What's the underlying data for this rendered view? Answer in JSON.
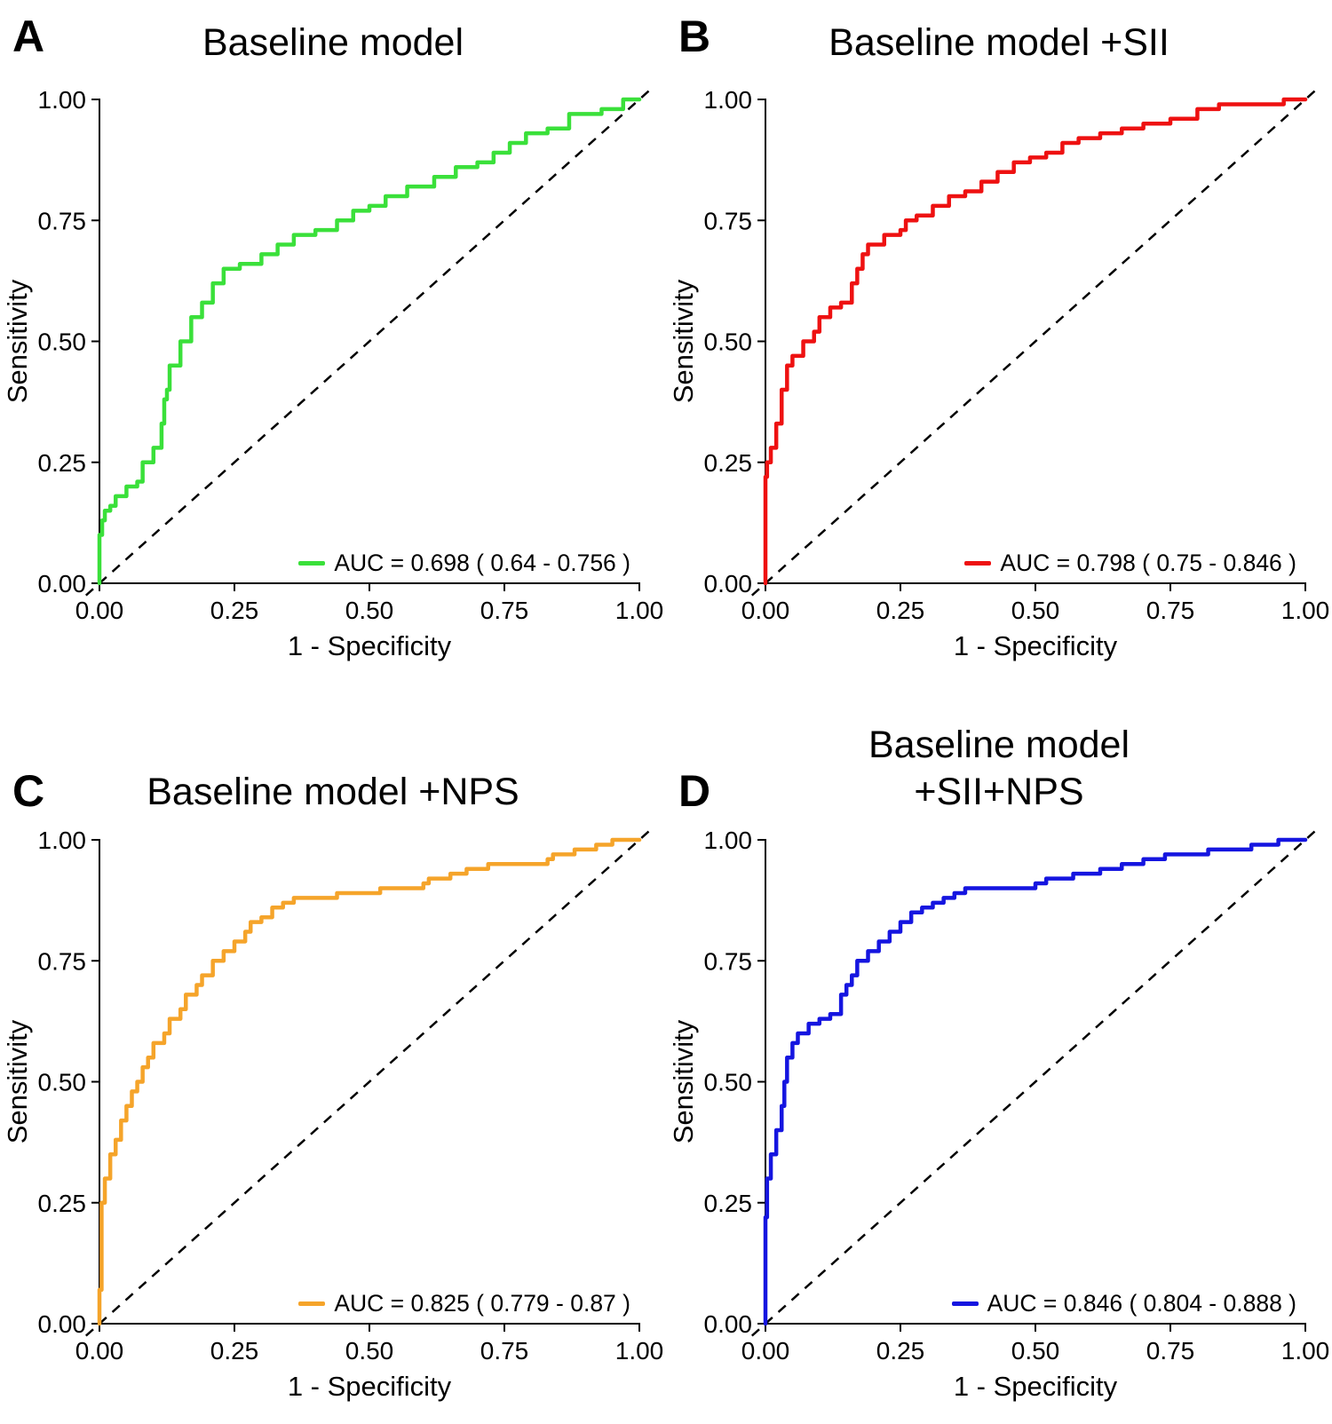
{
  "figure": {
    "x_label": "1 - Specificity",
    "y_label": "Sensitivity",
    "tick_labels": [
      "0.00",
      "0.25",
      "0.50",
      "0.75",
      "1.00"
    ],
    "tick_values": [
      0,
      0.25,
      0.5,
      0.75,
      1
    ]
  },
  "chart_data": [
    {
      "type": "line",
      "panel_letter": "A",
      "title": "Baseline model",
      "series_name": "ROC curve",
      "color": "#3ae03a",
      "legend_label": "AUC = 0.698 ( 0.64 - 0.756 )",
      "auc": 0.698,
      "auc_ci_low": 0.64,
      "auc_ci_high": 0.756,
      "xlabel": "1 - Specificity",
      "ylabel": "Sensitivity",
      "xlim": [
        0,
        1
      ],
      "ylim": [
        0,
        1
      ],
      "diagonal_reference": true,
      "x": [
        0,
        0.005,
        0.01,
        0.02,
        0.03,
        0.05,
        0.07,
        0.08,
        0.1,
        0.115,
        0.12,
        0.125,
        0.13,
        0.15,
        0.17,
        0.19,
        0.21,
        0.23,
        0.26,
        0.3,
        0.33,
        0.36,
        0.4,
        0.44,
        0.47,
        0.5,
        0.53,
        0.57,
        0.62,
        0.66,
        0.7,
        0.73,
        0.76,
        0.79,
        0.83,
        0.87,
        0.93,
        0.97,
        1.0
      ],
      "y": [
        0,
        0.1,
        0.13,
        0.15,
        0.16,
        0.18,
        0.2,
        0.21,
        0.25,
        0.28,
        0.33,
        0.38,
        0.4,
        0.45,
        0.5,
        0.55,
        0.58,
        0.62,
        0.65,
        0.66,
        0.68,
        0.7,
        0.72,
        0.73,
        0.75,
        0.77,
        0.78,
        0.8,
        0.82,
        0.84,
        0.86,
        0.87,
        0.89,
        0.91,
        0.93,
        0.94,
        0.97,
        0.98,
        1.0
      ]
    },
    {
      "type": "line",
      "panel_letter": "B",
      "title": "Baseline model +SII",
      "series_name": "ROC curve",
      "color": "#ee1111",
      "legend_label": "AUC = 0.798 ( 0.75 - 0.846 )",
      "auc": 0.798,
      "auc_ci_low": 0.75,
      "auc_ci_high": 0.846,
      "xlabel": "1 - Specificity",
      "ylabel": "Sensitivity",
      "xlim": [
        0,
        1
      ],
      "ylim": [
        0,
        1
      ],
      "diagonal_reference": true,
      "x": [
        0,
        0.003,
        0.01,
        0.02,
        0.03,
        0.04,
        0.05,
        0.07,
        0.09,
        0.1,
        0.12,
        0.14,
        0.16,
        0.17,
        0.18,
        0.19,
        0.22,
        0.25,
        0.26,
        0.28,
        0.31,
        0.34,
        0.37,
        0.4,
        0.43,
        0.46,
        0.49,
        0.52,
        0.55,
        0.58,
        0.62,
        0.66,
        0.7,
        0.75,
        0.8,
        0.84,
        0.9,
        0.96,
        1.0
      ],
      "y": [
        0,
        0.22,
        0.25,
        0.28,
        0.33,
        0.4,
        0.45,
        0.47,
        0.5,
        0.52,
        0.55,
        0.57,
        0.58,
        0.62,
        0.65,
        0.68,
        0.7,
        0.72,
        0.73,
        0.75,
        0.76,
        0.78,
        0.8,
        0.81,
        0.83,
        0.85,
        0.87,
        0.88,
        0.89,
        0.91,
        0.92,
        0.93,
        0.94,
        0.95,
        0.96,
        0.98,
        0.99,
        0.99,
        1.0
      ]
    },
    {
      "type": "line",
      "panel_letter": "C",
      "title": "Baseline model +NPS",
      "series_name": "ROC curve",
      "color": "#f5a42a",
      "legend_label": "AUC = 0.825 ( 0.779 - 0.87 )",
      "auc": 0.825,
      "auc_ci_low": 0.779,
      "auc_ci_high": 0.87,
      "xlabel": "1 - Specificity",
      "ylabel": "Sensitivity",
      "xlim": [
        0,
        1
      ],
      "ylim": [
        0,
        1
      ],
      "diagonal_reference": true,
      "x": [
        0,
        0.004,
        0.01,
        0.02,
        0.03,
        0.04,
        0.05,
        0.06,
        0.07,
        0.08,
        0.09,
        0.1,
        0.12,
        0.13,
        0.15,
        0.16,
        0.18,
        0.19,
        0.21,
        0.23,
        0.25,
        0.27,
        0.28,
        0.3,
        0.32,
        0.34,
        0.36,
        0.38,
        0.44,
        0.45,
        0.52,
        0.53,
        0.6,
        0.61,
        0.65,
        0.68,
        0.72,
        0.75,
        0.83,
        0.84,
        0.88,
        0.92,
        0.95,
        1.0
      ],
      "y": [
        0,
        0.07,
        0.25,
        0.3,
        0.35,
        0.38,
        0.42,
        0.45,
        0.48,
        0.5,
        0.53,
        0.55,
        0.58,
        0.6,
        0.63,
        0.65,
        0.68,
        0.7,
        0.72,
        0.75,
        0.77,
        0.79,
        0.81,
        0.83,
        0.84,
        0.86,
        0.87,
        0.88,
        0.88,
        0.89,
        0.89,
        0.9,
        0.9,
        0.91,
        0.92,
        0.93,
        0.94,
        0.95,
        0.95,
        0.96,
        0.97,
        0.98,
        0.99,
        1.0
      ]
    },
    {
      "type": "line",
      "panel_letter": "D",
      "title": "Baseline model\n+SII+NPS",
      "series_name": "ROC curve",
      "color": "#1515e0",
      "legend_label": "AUC = 0.846 ( 0.804 - 0.888 )",
      "auc": 0.846,
      "auc_ci_low": 0.804,
      "auc_ci_high": 0.888,
      "xlabel": "1 - Specificity",
      "ylabel": "Sensitivity",
      "xlim": [
        0,
        1
      ],
      "ylim": [
        0,
        1
      ],
      "diagonal_reference": true,
      "x": [
        0,
        0.003,
        0.01,
        0.02,
        0.03,
        0.035,
        0.04,
        0.05,
        0.06,
        0.08,
        0.1,
        0.12,
        0.14,
        0.15,
        0.16,
        0.17,
        0.19,
        0.21,
        0.23,
        0.25,
        0.27,
        0.29,
        0.31,
        0.33,
        0.35,
        0.37,
        0.4,
        0.5,
        0.52,
        0.57,
        0.62,
        0.66,
        0.7,
        0.74,
        0.78,
        0.82,
        0.86,
        0.9,
        0.95,
        1.0
      ],
      "y": [
        0,
        0.22,
        0.3,
        0.35,
        0.4,
        0.45,
        0.5,
        0.55,
        0.58,
        0.6,
        0.62,
        0.63,
        0.64,
        0.68,
        0.7,
        0.72,
        0.75,
        0.77,
        0.79,
        0.81,
        0.83,
        0.85,
        0.86,
        0.87,
        0.88,
        0.89,
        0.9,
        0.9,
        0.91,
        0.92,
        0.93,
        0.94,
        0.95,
        0.96,
        0.97,
        0.97,
        0.98,
        0.98,
        0.99,
        1.0
      ]
    }
  ]
}
